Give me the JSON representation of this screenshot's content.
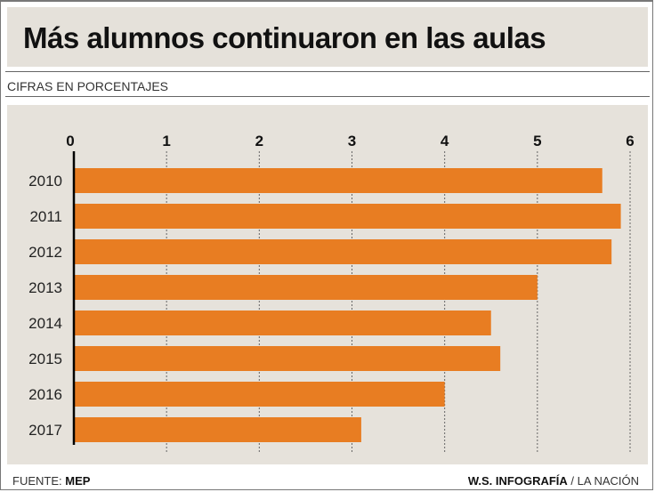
{
  "chart_data": {
    "type": "bar",
    "orientation": "horizontal",
    "title": "Más alumnos continuaron en las aulas",
    "subtitle": "CIFRAS EN PORCENTAJES",
    "categories": [
      "2010",
      "2011",
      "2012",
      "2013",
      "2014",
      "2015",
      "2016",
      "2017"
    ],
    "values": [
      5.7,
      5.9,
      5.8,
      5.0,
      4.5,
      4.6,
      4.0,
      3.1
    ],
    "xlim": [
      0,
      6
    ],
    "xticks": [
      "0",
      "1",
      "2",
      "3",
      "4",
      "5",
      "6"
    ],
    "xlabel": "",
    "ylabel": "",
    "grid": true,
    "bar_color": "#e87d22"
  },
  "footer": {
    "source_label": "FUENTE:",
    "source": "MEP",
    "credit": "W.S. INFOGRAFÍA",
    "publication": "/ LA NACIÓN"
  }
}
